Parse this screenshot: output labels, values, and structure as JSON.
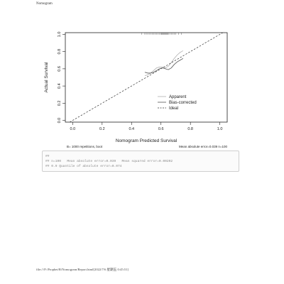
{
  "page": {
    "header": "Nomogram",
    "footer": "file:///F:/Prophet/R/Nomogram/Report.html[2022/7/6 星期五 0:45:51]"
  },
  "console": {
    "lines": [
      "##",
      "## n=100   Mean absolute error=0.039   Mean squared error=0.00202",
      "## 0.9 Quantile of absolute error=0.074"
    ]
  },
  "chart_data": {
    "type": "line",
    "title": "",
    "xlabel": "Nomogram Predicted Survival",
    "ylabel": "Actual Survival",
    "xlim": [
      -0.05,
      1.05
    ],
    "ylim": [
      -0.02,
      1.02
    ],
    "x_ticks": [
      "0.0",
      "0.2",
      "0.4",
      "0.6",
      "0.8",
      "1.0"
    ],
    "y_ticks": [
      "0.0",
      "0.2",
      "0.4",
      "0.6",
      "0.8",
      "1.0"
    ],
    "grid": false,
    "legend_position": "bottom-right",
    "footnote_left": "B= 1000 repetitions, boot",
    "footnote_right": "Mean absolute error=0.039 n=100",
    "rug_x": [
      0.47,
      0.49,
      0.5,
      0.51,
      0.52,
      0.53,
      0.54,
      0.55,
      0.56,
      0.57,
      0.58,
      0.59,
      0.6,
      0.605,
      0.61,
      0.615,
      0.62,
      0.625,
      0.63,
      0.635,
      0.64,
      0.645,
      0.65,
      0.66,
      0.67,
      0.68,
      0.69,
      0.7,
      0.72,
      0.74
    ],
    "series": [
      {
        "name": "Apparent",
        "color": "#b0b0b0",
        "dash": "solid",
        "x": [
          0.49,
          0.51,
          0.53,
          0.55,
          0.57,
          0.59,
          0.61,
          0.63,
          0.65,
          0.67,
          0.69,
          0.71,
          0.73,
          0.75
        ],
        "y": [
          0.52,
          0.53,
          0.55,
          0.58,
          0.61,
          0.62,
          0.62,
          0.61,
          0.63,
          0.67,
          0.72,
          0.76,
          0.79,
          0.81
        ]
      },
      {
        "name": "Bias-corrected",
        "color": "#555555",
        "dash": "solid",
        "x": [
          0.49,
          0.51,
          0.53,
          0.55,
          0.57,
          0.59,
          0.61,
          0.63,
          0.65,
          0.67,
          0.69,
          0.71,
          0.73,
          0.75
        ],
        "y": [
          0.56,
          0.55,
          0.55,
          0.56,
          0.58,
          0.6,
          0.61,
          0.6,
          0.59,
          0.61,
          0.65,
          0.68,
          0.7,
          0.72
        ]
      },
      {
        "name": "Ideal",
        "color": "#333333",
        "dash": "dashed",
        "x": [
          -0.02,
          1.03
        ],
        "y": [
          -0.02,
          1.03
        ]
      }
    ]
  }
}
